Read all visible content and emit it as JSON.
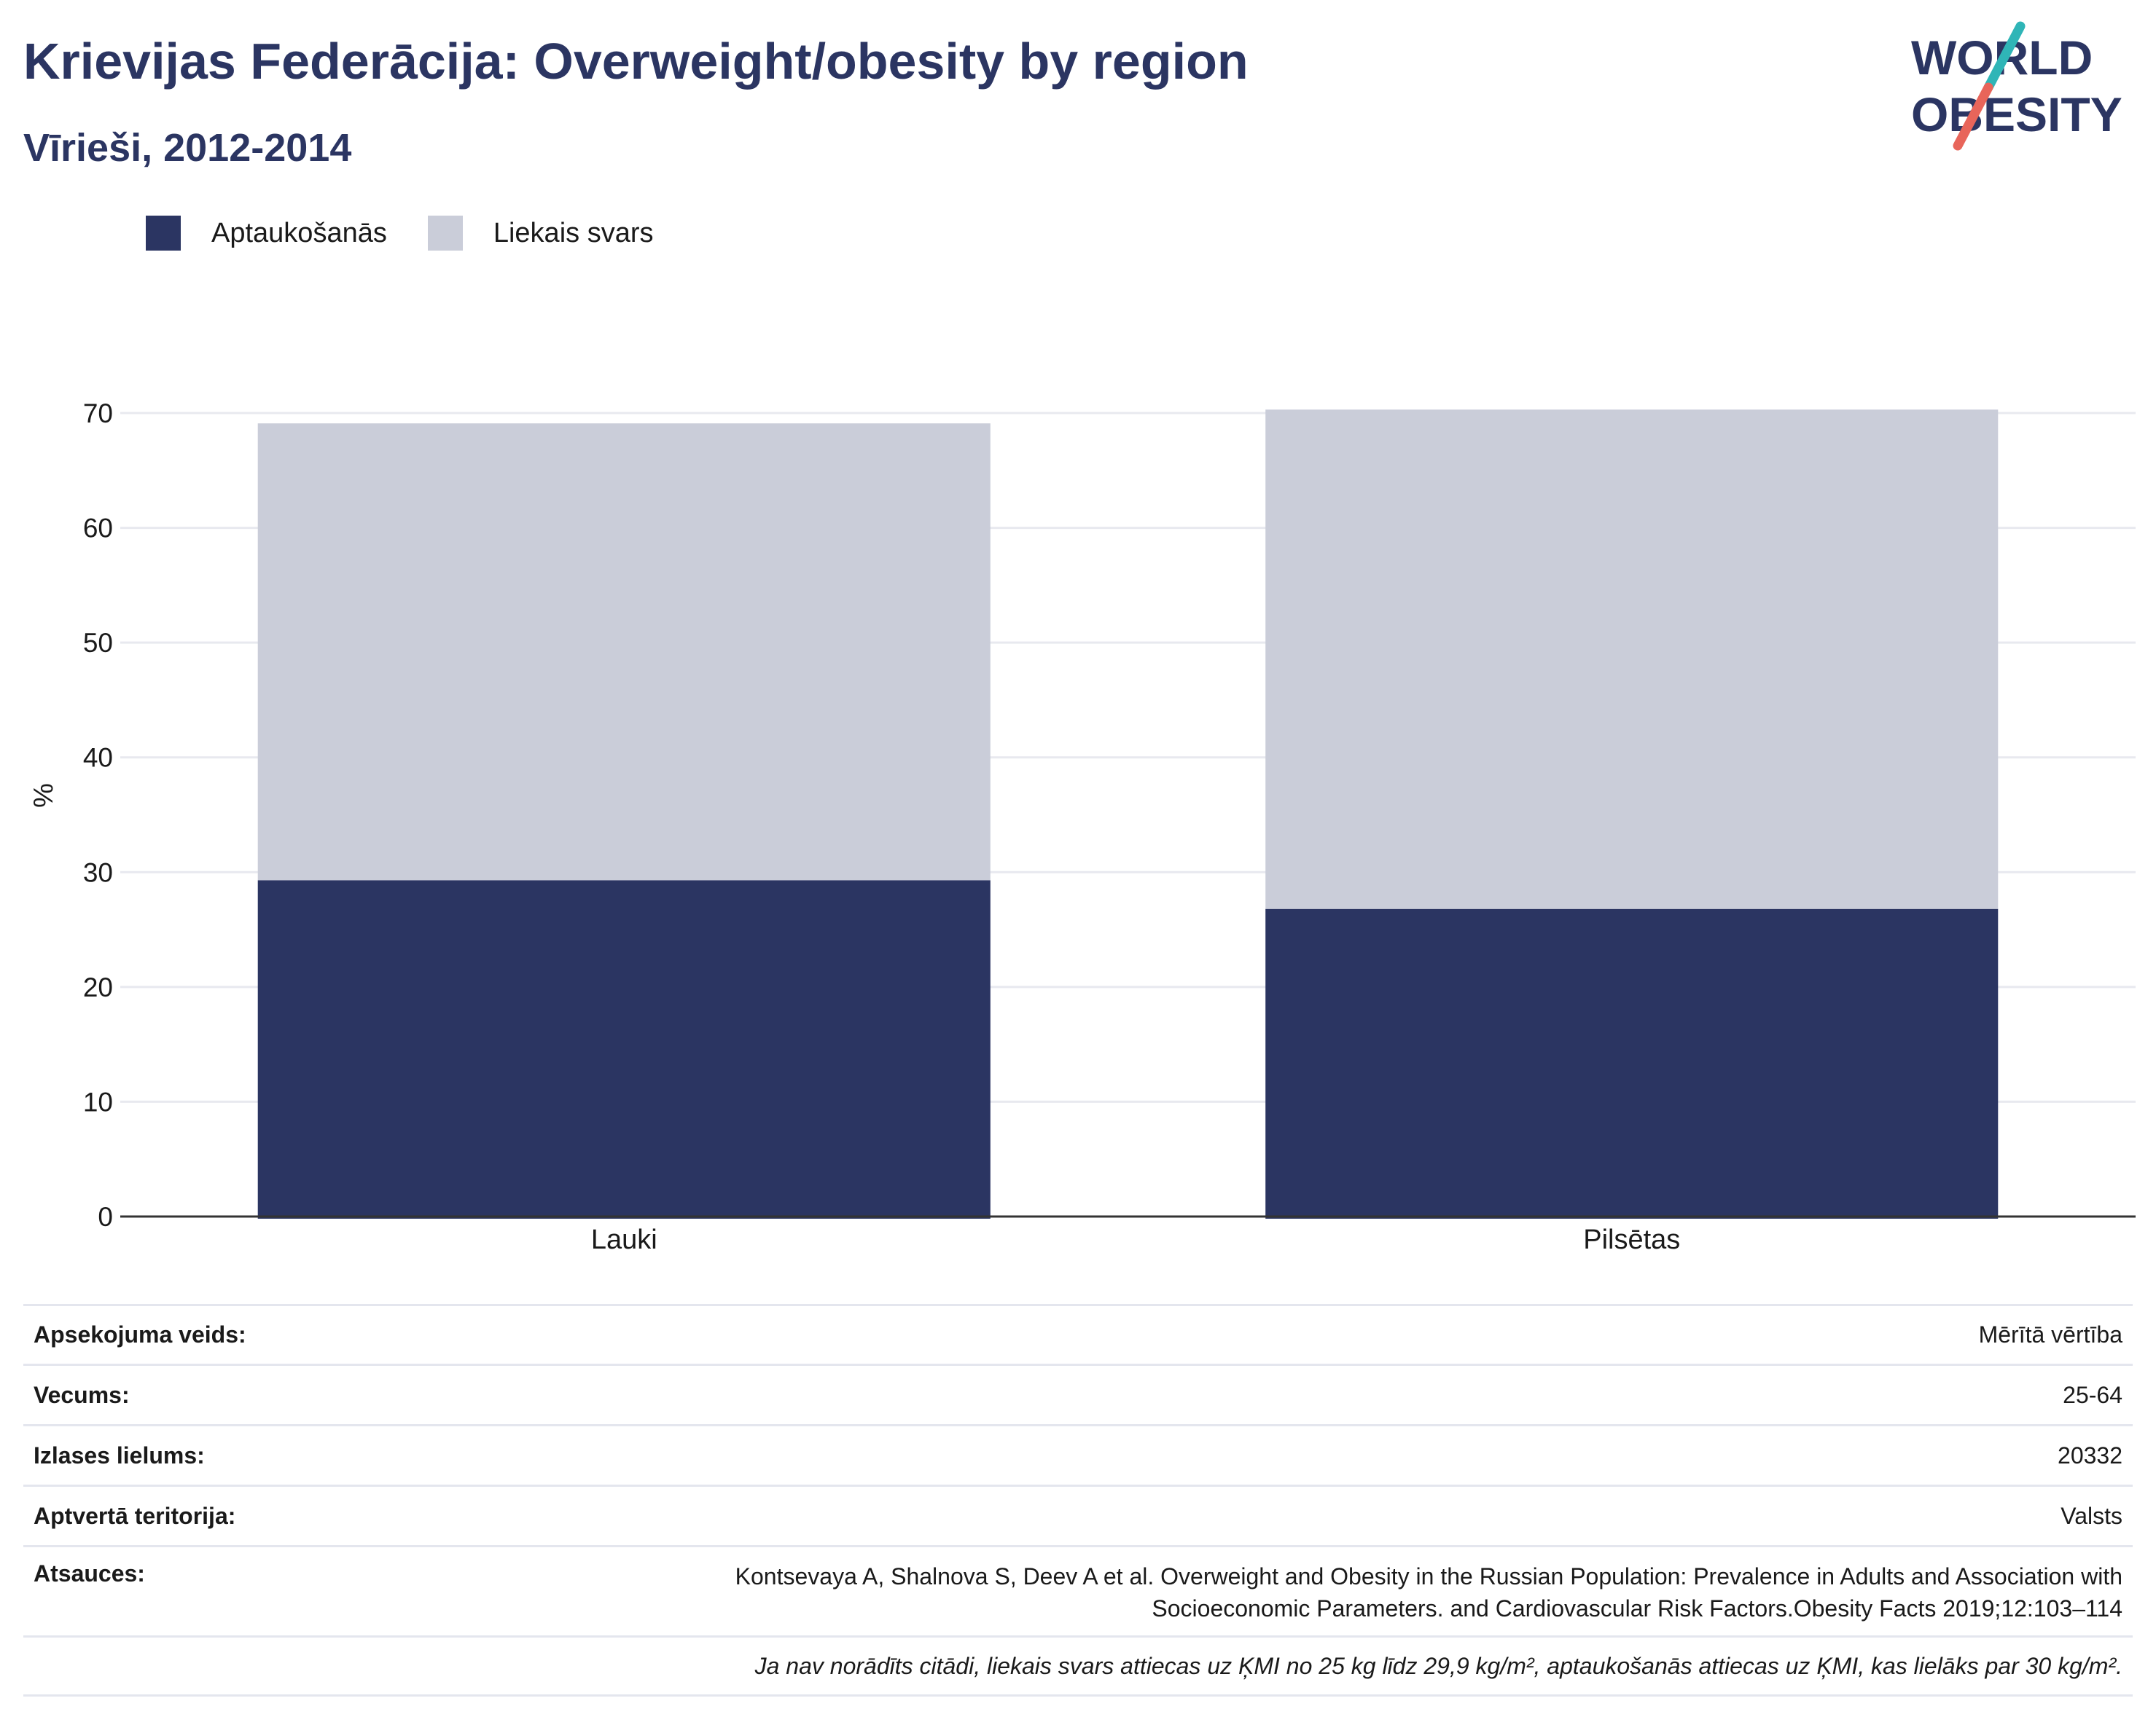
{
  "header": {
    "title": "Krievijas Federācija: Overweight/obesity by region",
    "subtitle": "Vīrieši, 2012-2014"
  },
  "logo": {
    "line1": "WORLD",
    "line2": "OBESITY",
    "accent_teal": "#2fb5b7",
    "accent_coral": "#e8655a"
  },
  "colors": {
    "obesity": "#2b3562",
    "overweight": "#cacdd9",
    "grid": "#e8e9ef",
    "axis": "#333333"
  },
  "chart_data": {
    "type": "bar",
    "stacked": true,
    "categories": [
      "Lauki",
      "Pilsētas"
    ],
    "series": [
      {
        "name": "Aptaukošanās",
        "values": [
          29.3,
          26.8
        ]
      },
      {
        "name": "Liekais svars",
        "values": [
          39.8,
          43.5
        ]
      }
    ],
    "ylabel": "%",
    "ylim": [
      0,
      70
    ],
    "yticks": [
      0,
      10,
      20,
      30,
      40,
      50,
      60,
      70
    ],
    "grid": true,
    "legend_position": "top-left"
  },
  "info": {
    "rows": [
      {
        "key": "Apsekojuma veids:",
        "value": "Mērītā vērtība"
      },
      {
        "key": "Vecums:",
        "value": "25-64"
      },
      {
        "key": "Izlases lielums:",
        "value": "20332"
      },
      {
        "key": "Aptvertā teritorija:",
        "value": "Valsts"
      },
      {
        "key": "Atsauces:",
        "value_line1": "Kontsevaya A, Shalnova S, Deev A et al. Overweight and Obesity in the Russian Population: Prevalence in Adults and Association with",
        "value_line2": "Socioeconomic Parameters. and Cardiovascular Risk Factors.Obesity Facts 2019;12:103–114"
      }
    ],
    "note": "Ja nav norādīts citādi, liekais svars attiecas uz ĶMI no 25 kg līdz 29,9 kg/m², aptaukošanās attiecas uz ĶMI, kas lielāks par 30 kg/m²."
  }
}
